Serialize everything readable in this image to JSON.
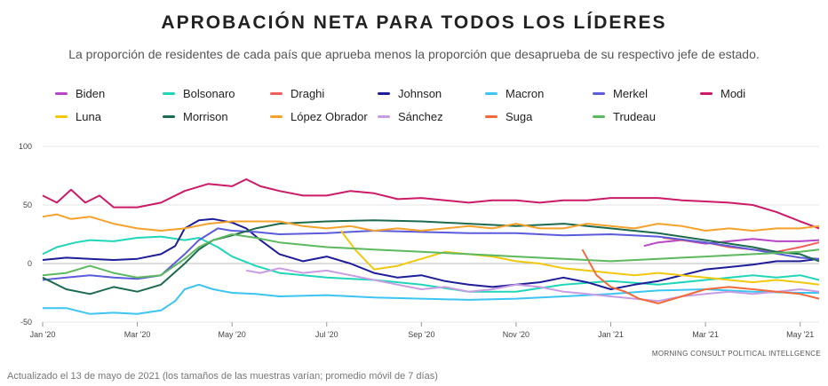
{
  "title": "APROBACIÓN NETA PARA TODOS LOS LÍDERES",
  "subtitle": "La proporción de residentes de cada país que aprueba menos la proporción que desaprueba de su respectivo jefe de estado.",
  "footnote": "Actualizado el 13 de mayo de 2021 (los tamaños de las muestras varían; promedio móvil de 7 días)",
  "source": "MORNING CONSULT POLITICAL INTELLGENCE",
  "chart_data": {
    "type": "line",
    "title": "APROBACIÓN NETA PARA TODOS LOS LÍDERES",
    "xlabel": "",
    "ylabel": "",
    "ylim": [
      -50,
      100
    ],
    "xlim": [
      0,
      16.4
    ],
    "y_ticks": [
      100,
      50,
      0,
      -50
    ],
    "x_ticks": [
      {
        "label": "Jan '20",
        "value": 0
      },
      {
        "label": "Mar '20",
        "value": 2
      },
      {
        "label": "May '20",
        "value": 4
      },
      {
        "label": "Jul '20",
        "value": 6
      },
      {
        "label": "Sep '20",
        "value": 8
      },
      {
        "label": "Nov '20",
        "value": 10
      },
      {
        "label": "Jan '21",
        "value": 12
      },
      {
        "label": "Mar '21",
        "value": 14
      },
      {
        "label": "May '21",
        "value": 16
      }
    ],
    "grid": "horizontal",
    "legend_position": "top",
    "series": [
      {
        "name": "Biden",
        "color": "#b845c8",
        "x": [
          12.7,
          13,
          13.5,
          14,
          14.5,
          15,
          15.5,
          16,
          16.4
        ],
        "values": [
          15,
          18,
          20,
          17,
          19,
          21,
          19,
          19,
          20
        ]
      },
      {
        "name": "Bolsonaro",
        "color": "#20d6b8",
        "x": [
          0,
          0.3,
          0.7,
          1,
          1.5,
          2,
          2.5,
          3,
          3.3,
          3.7,
          4,
          4.5,
          5,
          6,
          7,
          8,
          9,
          10,
          11,
          12,
          13,
          14,
          15,
          15.5,
          16,
          16.4
        ],
        "values": [
          8,
          14,
          18,
          20,
          19,
          22,
          23,
          20,
          22,
          14,
          6,
          -2,
          -8,
          -12,
          -14,
          -18,
          -24,
          -24,
          -18,
          -15,
          -18,
          -14,
          -10,
          -12,
          -10,
          -14
        ]
      },
      {
        "name": "Draghi",
        "color": "#f0615c",
        "x": [
          13.1,
          13.5,
          14,
          14.5,
          15,
          15.5,
          16,
          16.4
        ],
        "values": [
          22,
          20,
          18,
          14,
          12,
          10,
          14,
          18
        ]
      },
      {
        "name": "Johnson",
        "color": "#1d1d99",
        "x": [
          0,
          0.5,
          1,
          1.5,
          2,
          2.5,
          2.8,
          3,
          3.3,
          3.6,
          4,
          4.3,
          4.6,
          5,
          5.5,
          6,
          6.5,
          7,
          7.5,
          8,
          8.5,
          9,
          9.5,
          10,
          10.5,
          11,
          11.5,
          12,
          12.5,
          13,
          13.5,
          14,
          14.5,
          15,
          15.5,
          16,
          16.4
        ],
        "values": [
          3,
          5,
          4,
          3,
          4,
          8,
          15,
          30,
          37,
          38,
          35,
          30,
          20,
          8,
          2,
          6,
          0,
          -8,
          -12,
          -10,
          -15,
          -18,
          -20,
          -18,
          -16,
          -12,
          -16,
          -22,
          -18,
          -15,
          -10,
          -5,
          -3,
          -1,
          2,
          2,
          4
        ]
      },
      {
        "name": "Macron",
        "color": "#3cc4f2",
        "x": [
          0,
          0.5,
          1,
          1.5,
          2,
          2.5,
          2.8,
          3,
          3.3,
          3.6,
          4,
          4.5,
          5,
          6,
          7,
          8,
          9,
          10,
          11,
          12,
          13,
          14,
          15,
          16,
          16.4
        ],
        "values": [
          -38,
          -38,
          -43,
          -42,
          -43,
          -40,
          -32,
          -22,
          -18,
          -22,
          -25,
          -26,
          -28,
          -27,
          -29,
          -30,
          -31,
          -30,
          -28,
          -26,
          -23,
          -22,
          -24,
          -25,
          -25
        ]
      },
      {
        "name": "Merkel",
        "color": "#5b5bdb",
        "x": [
          0,
          0.5,
          1,
          1.5,
          2,
          2.5,
          3,
          3.3,
          3.7,
          4,
          4.5,
          5,
          6,
          7,
          8,
          9,
          10,
          11,
          12,
          13,
          14,
          15,
          16,
          16.4
        ],
        "values": [
          -14,
          -12,
          -10,
          -12,
          -13,
          -10,
          8,
          20,
          30,
          28,
          27,
          25,
          26,
          28,
          27,
          26,
          26,
          24,
          25,
          23,
          18,
          12,
          5,
          4
        ]
      },
      {
        "name": "Modi",
        "color": "#cc1a68",
        "x": [
          0,
          0.3,
          0.6,
          0.9,
          1.2,
          1.5,
          2,
          2.5,
          3,
          3.5,
          4,
          4.3,
          4.6,
          5,
          5.5,
          6,
          6.5,
          7,
          7.5,
          8,
          8.5,
          9,
          9.5,
          10,
          10.5,
          11,
          11.5,
          12,
          12.5,
          13,
          13.5,
          14,
          14.5,
          15,
          15.5,
          16,
          16.4
        ],
        "values": [
          58,
          52,
          63,
          52,
          58,
          48,
          48,
          52,
          62,
          68,
          66,
          72,
          66,
          62,
          58,
          58,
          62,
          60,
          55,
          56,
          54,
          52,
          54,
          54,
          52,
          54,
          54,
          56,
          56,
          56,
          54,
          53,
          52,
          50,
          44,
          36,
          30
        ]
      },
      {
        "name": "Luna",
        "color": "#f2c80f",
        "x": [
          6.3,
          6.6,
          7,
          7.5,
          8,
          8.5,
          9,
          9.5,
          10,
          10.5,
          11,
          11.5,
          12,
          12.5,
          13,
          13.5,
          14,
          14.5,
          15,
          15.5,
          16,
          16.4
        ],
        "values": [
          28,
          12,
          -5,
          -2,
          4,
          10,
          8,
          6,
          2,
          0,
          -4,
          -6,
          -8,
          -10,
          -8,
          -10,
          -12,
          -14,
          -16,
          -14,
          -16,
          -18
        ]
      },
      {
        "name": "Morrison",
        "color": "#1c6b4e",
        "x": [
          0,
          0.5,
          1,
          1.5,
          2,
          2.5,
          3,
          3.3,
          3.6,
          4,
          4.5,
          5,
          5.5,
          6,
          7,
          8,
          9,
          10,
          11,
          12,
          13,
          14,
          15,
          15.5,
          16,
          16.4
        ],
        "values": [
          -12,
          -22,
          -26,
          -20,
          -24,
          -18,
          0,
          12,
          20,
          24,
          30,
          34,
          35,
          36,
          37,
          36,
          34,
          32,
          34,
          30,
          26,
          20,
          14,
          10,
          8,
          2
        ]
      },
      {
        "name": "López Obrador",
        "color": "#f5a12b",
        "x": [
          0,
          0.3,
          0.6,
          1,
          1.5,
          2,
          2.5,
          3,
          3.5,
          4,
          4.5,
          5,
          5.5,
          6,
          6.5,
          7,
          7.5,
          8,
          8.5,
          9,
          9.5,
          10,
          10.5,
          11,
          11.5,
          12,
          12.5,
          13,
          13.5,
          14,
          14.5,
          15,
          15.5,
          16,
          16.4
        ],
        "values": [
          40,
          42,
          38,
          40,
          34,
          30,
          28,
          30,
          34,
          36,
          36,
          36,
          32,
          30,
          32,
          28,
          30,
          28,
          30,
          32,
          30,
          34,
          30,
          30,
          34,
          32,
          30,
          34,
          32,
          28,
          30,
          28,
          30,
          30,
          32
        ]
      },
      {
        "name": "Sánchez",
        "color": "#c99be3",
        "x": [
          4.3,
          4.6,
          5,
          5.5,
          6,
          6.5,
          7,
          7.5,
          8,
          8.5,
          9,
          9.5,
          10,
          10.5,
          11,
          11.5,
          12,
          12.5,
          13,
          13.5,
          14,
          14.5,
          15,
          15.5,
          16,
          16.4
        ],
        "values": [
          -6,
          -8,
          -4,
          -8,
          -6,
          -10,
          -14,
          -18,
          -22,
          -20,
          -24,
          -22,
          -18,
          -20,
          -24,
          -26,
          -28,
          -30,
          -32,
          -28,
          -26,
          -24,
          -26,
          -24,
          -22,
          -24
        ]
      },
      {
        "name": "Suga",
        "color": "#f26a3a",
        "x": [
          11.4,
          11.7,
          12,
          12.3,
          12.6,
          13,
          13.5,
          14,
          14.5,
          15,
          15.5,
          16,
          16.4
        ],
        "values": [
          12,
          -10,
          -20,
          -24,
          -30,
          -34,
          -28,
          -22,
          -20,
          -22,
          -24,
          -26,
          -30
        ]
      },
      {
        "name": "Trudeau",
        "color": "#5cb95e",
        "x": [
          0,
          0.5,
          1,
          1.5,
          2,
          2.5,
          3,
          3.3,
          3.6,
          4,
          4.5,
          5,
          6,
          7,
          8,
          9,
          10,
          11,
          12,
          13,
          14,
          15,
          16,
          16.4
        ],
        "values": [
          -10,
          -8,
          -2,
          -8,
          -12,
          -10,
          4,
          14,
          20,
          25,
          22,
          18,
          14,
          12,
          10,
          8,
          6,
          4,
          2,
          4,
          6,
          8,
          10,
          12
        ]
      }
    ]
  }
}
